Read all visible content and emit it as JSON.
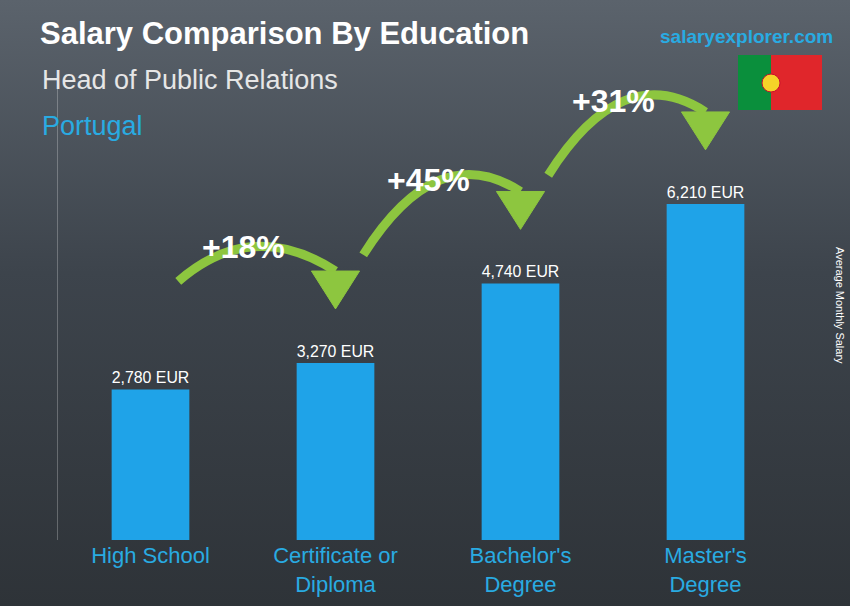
{
  "chart_data": {
    "type": "bar",
    "title": "Salary Comparison By Education",
    "subtitle": "Head of Public Relations",
    "location": "Portugal",
    "source": "salaryexplorer.com",
    "y_label": "Average Monthly Salary",
    "categories": [
      "High School",
      "Certificate or Diploma",
      "Bachelor's Degree",
      "Master's Degree"
    ],
    "values": [
      2780,
      3270,
      4740,
      6210
    ],
    "value_labels": [
      "2,780 EUR",
      "3,270 EUR",
      "4,740 EUR",
      "6,210 EUR"
    ],
    "annotations": [
      "+18%",
      "+45%",
      "+31%"
    ],
    "color": "#1fa3e8",
    "ylim": [
      0,
      8500
    ],
    "yticks": [],
    "grid": false,
    "data_labels": true,
    "tick_labels": "x"
  }
}
